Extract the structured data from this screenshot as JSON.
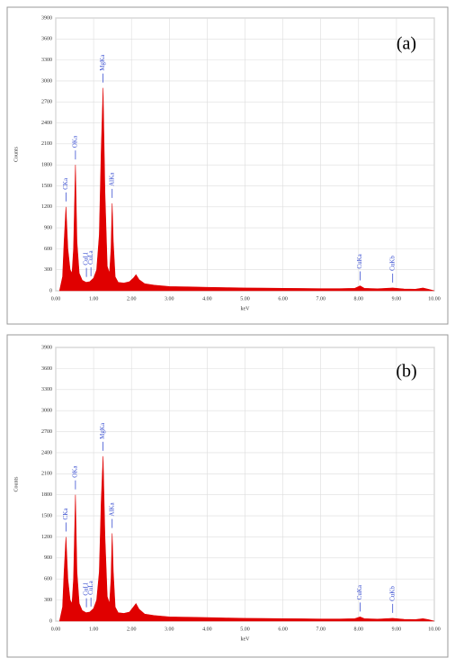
{
  "chart_data": [
    {
      "type": "area",
      "title": "(a)",
      "xlabel": "keV",
      "ylabel": "Counts",
      "color": "#e00000",
      "xlim": [
        0,
        10
      ],
      "ylim": [
        0,
        3900
      ],
      "xticks": [
        {
          "value": 0,
          "label": "0.00"
        },
        {
          "value": 1,
          "label": "1.00"
        },
        {
          "value": 2,
          "label": "2.00"
        },
        {
          "value": 3,
          "label": "3.00"
        },
        {
          "value": 4,
          "label": "4.00"
        },
        {
          "value": 5,
          "label": "5.00"
        },
        {
          "value": 6,
          "label": "6.00"
        },
        {
          "value": 7,
          "label": "7.00"
        },
        {
          "value": 8,
          "label": "8.00"
        },
        {
          "value": 9,
          "label": "9.00"
        },
        {
          "value": 10,
          "label": "10.00"
        }
      ],
      "yticks": [
        0,
        300,
        600,
        900,
        1200,
        1500,
        1800,
        2100,
        2400,
        2700,
        3000,
        3300,
        3600,
        3900
      ],
      "grid": true,
      "x": [
        0.1,
        0.18,
        0.22,
        0.27,
        0.32,
        0.38,
        0.43,
        0.47,
        0.52,
        0.56,
        0.62,
        0.7,
        0.8,
        0.9,
        1.0,
        1.08,
        1.15,
        1.2,
        1.25,
        1.3,
        1.36,
        1.42,
        1.46,
        1.49,
        1.52,
        1.57,
        1.65,
        1.8,
        1.95,
        2.05,
        2.12,
        2.2,
        2.35,
        2.6,
        3.0,
        3.5,
        4.0,
        4.5,
        5.0,
        5.5,
        6.0,
        6.5,
        7.0,
        7.5,
        7.9,
        8.04,
        8.15,
        8.5,
        8.9,
        9.2,
        9.5,
        9.7,
        9.85,
        10.0
      ],
      "values": [
        0,
        200,
        700,
        1200,
        600,
        300,
        250,
        600,
        1800,
        700,
        250,
        150,
        120,
        130,
        180,
        300,
        800,
        2000,
        2900,
        1400,
        350,
        250,
        600,
        1250,
        700,
        200,
        120,
        110,
        130,
        180,
        230,
        160,
        100,
        80,
        60,
        55,
        50,
        45,
        40,
        38,
        35,
        33,
        30,
        30,
        35,
        70,
        35,
        28,
        40,
        25,
        22,
        40,
        20,
        0
      ],
      "annotations": [
        {
          "text": "CKa",
          "x": 0.27
        },
        {
          "text": "OKa",
          "x": 0.52
        },
        {
          "text": "CuLl",
          "x": 0.81
        },
        {
          "text": "CuLa",
          "x": 0.93
        },
        {
          "text": "MgKa",
          "x": 1.25
        },
        {
          "text": "AlKa",
          "x": 1.49
        },
        {
          "text": "CuKa",
          "x": 8.04
        },
        {
          "text": "CuKb",
          "x": 8.9
        }
      ]
    },
    {
      "type": "area",
      "title": "(b)",
      "xlabel": "keV",
      "ylabel": "Counts",
      "color": "#e00000",
      "xlim": [
        0,
        10
      ],
      "ylim": [
        0,
        3900
      ],
      "xticks": [
        {
          "value": 0,
          "label": "0.00"
        },
        {
          "value": 1,
          "label": "1.00"
        },
        {
          "value": 2,
          "label": "2.00"
        },
        {
          "value": 3,
          "label": "3.00"
        },
        {
          "value": 4,
          "label": "4.00"
        },
        {
          "value": 5,
          "label": "5.00"
        },
        {
          "value": 6,
          "label": "6.00"
        },
        {
          "value": 7,
          "label": "7.00"
        },
        {
          "value": 8,
          "label": "8.00"
        },
        {
          "value": 9,
          "label": "9.00"
        },
        {
          "value": 10,
          "label": "10.00"
        }
      ],
      "yticks": [
        0,
        300,
        600,
        900,
        1200,
        1500,
        1800,
        2100,
        2400,
        2700,
        3000,
        3300,
        3600,
        3900
      ],
      "grid": true,
      "x": [
        0.1,
        0.18,
        0.22,
        0.27,
        0.32,
        0.38,
        0.43,
        0.47,
        0.52,
        0.56,
        0.62,
        0.7,
        0.8,
        0.9,
        1.0,
        1.08,
        1.15,
        1.2,
        1.25,
        1.3,
        1.36,
        1.42,
        1.46,
        1.49,
        1.52,
        1.57,
        1.65,
        1.8,
        1.95,
        2.05,
        2.12,
        2.2,
        2.35,
        2.6,
        3.0,
        3.5,
        4.0,
        4.5,
        5.0,
        5.5,
        6.0,
        6.5,
        7.0,
        7.5,
        7.9,
        8.04,
        8.15,
        8.5,
        8.9,
        9.2,
        9.5,
        9.7,
        9.85,
        10.0
      ],
      "values": [
        0,
        200,
        700,
        1200,
        600,
        300,
        250,
        600,
        1800,
        700,
        250,
        150,
        120,
        130,
        180,
        300,
        700,
        1700,
        2350,
        1200,
        350,
        250,
        600,
        1250,
        700,
        200,
        120,
        110,
        130,
        200,
        250,
        170,
        100,
        80,
        60,
        55,
        50,
        45,
        40,
        38,
        35,
        33,
        30,
        30,
        35,
        60,
        35,
        28,
        40,
        25,
        22,
        35,
        20,
        0
      ],
      "annotations": [
        {
          "text": "CKa",
          "x": 0.27
        },
        {
          "text": "OKa",
          "x": 0.52
        },
        {
          "text": "CuLl",
          "x": 0.81
        },
        {
          "text": "CuLa",
          "x": 0.93
        },
        {
          "text": "MgKa",
          "x": 1.25
        },
        {
          "text": "AlKa",
          "x": 1.49
        },
        {
          "text": "CuKa",
          "x": 8.04
        },
        {
          "text": "CuKb",
          "x": 8.9
        }
      ]
    }
  ]
}
